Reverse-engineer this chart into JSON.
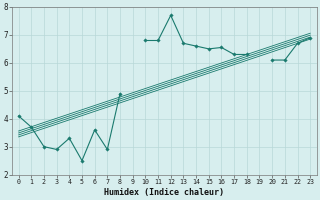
{
  "xlabel": "Humidex (Indice chaleur)",
  "bg_color": "#d7eeee",
  "grid_color": "#b8d8d8",
  "line_color": "#1a7a6e",
  "x_data": [
    0,
    1,
    2,
    3,
    4,
    5,
    6,
    7,
    8,
    9,
    10,
    11,
    12,
    13,
    14,
    15,
    16,
    17,
    18,
    19,
    20,
    21,
    22,
    23
  ],
  "y_main": [
    4.1,
    3.7,
    3.0,
    2.9,
    3.3,
    2.5,
    3.6,
    2.9,
    4.9,
    null,
    6.8,
    6.8,
    7.7,
    6.7,
    6.6,
    6.5,
    6.55,
    6.3,
    6.3,
    null,
    6.1,
    6.1,
    6.7,
    6.9
  ],
  "regression_lines": [
    {
      "x": [
        0,
        23
      ],
      "y": [
        3.35,
        6.85
      ]
    },
    {
      "x": [
        0,
        23
      ],
      "y": [
        3.42,
        6.92
      ]
    },
    {
      "x": [
        0,
        23
      ],
      "y": [
        3.49,
        6.99
      ]
    },
    {
      "x": [
        0,
        23
      ],
      "y": [
        3.56,
        7.06
      ]
    }
  ],
  "straight_line": {
    "x": [
      0,
      23
    ],
    "y": [
      3.5,
      7.0
    ]
  },
  "xlim": [
    -0.5,
    23.5
  ],
  "ylim": [
    2.0,
    8.0
  ],
  "yticks": [
    2,
    3,
    4,
    5,
    6,
    7,
    8
  ],
  "xticks": [
    0,
    1,
    2,
    3,
    4,
    5,
    6,
    7,
    8,
    9,
    10,
    11,
    12,
    13,
    14,
    15,
    16,
    17,
    18,
    19,
    20,
    21,
    22,
    23
  ],
  "figsize": [
    3.2,
    2.0
  ],
  "dpi": 100
}
